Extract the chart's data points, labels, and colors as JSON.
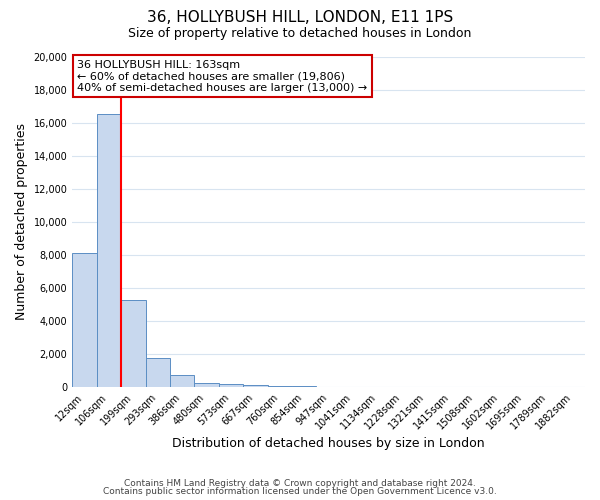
{
  "title": "36, HOLLYBUSH HILL, LONDON, E11 1PS",
  "subtitle": "Size of property relative to detached houses in London",
  "xlabel": "Distribution of detached houses by size in London",
  "ylabel": "Number of detached properties",
  "categories": [
    "12sqm",
    "106sqm",
    "199sqm",
    "293sqm",
    "386sqm",
    "480sqm",
    "573sqm",
    "667sqm",
    "760sqm",
    "854sqm",
    "947sqm",
    "1041sqm",
    "1134sqm",
    "1228sqm",
    "1321sqm",
    "1415sqm",
    "1508sqm",
    "1602sqm",
    "1695sqm",
    "1789sqm",
    "1882sqm"
  ],
  "values": [
    8100,
    16500,
    5300,
    1750,
    750,
    280,
    200,
    150,
    100,
    80,
    0,
    0,
    0,
    0,
    0,
    0,
    0,
    0,
    0,
    0,
    0
  ],
  "bar_color": "#c8d8ee",
  "bar_edge_color": "#5b8ec4",
  "red_line_x": 1.5,
  "annotation_title": "36 HOLLYBUSH HILL: 163sqm",
  "annotation_line1": "← 60% of detached houses are smaller (19,806)",
  "annotation_line2": "40% of semi-detached houses are larger (13,000) →",
  "annotation_box_color": "#ffffff",
  "annotation_box_edge": "#cc0000",
  "ylim": [
    0,
    20000
  ],
  "yticks": [
    0,
    2000,
    4000,
    6000,
    8000,
    10000,
    12000,
    14000,
    16000,
    18000,
    20000
  ],
  "footer1": "Contains HM Land Registry data © Crown copyright and database right 2024.",
  "footer2": "Contains public sector information licensed under the Open Government Licence v3.0.",
  "bg_color": "#ffffff",
  "plot_bg_color": "#ffffff",
  "grid_color": "#d8e4f0",
  "title_fontsize": 11,
  "subtitle_fontsize": 9,
  "axis_label_fontsize": 9,
  "tick_fontsize": 7,
  "footer_fontsize": 6.5,
  "annotation_fontsize": 8
}
